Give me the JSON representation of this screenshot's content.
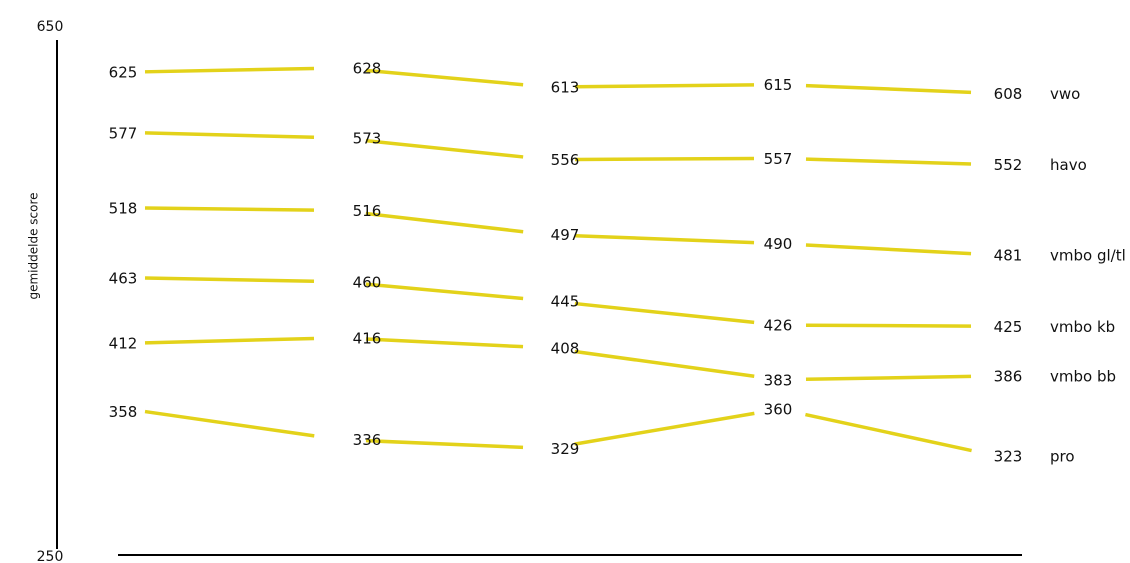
{
  "chart_data": {
    "type": "line",
    "ylabel": "gemiddelde score",
    "ylim": [
      250,
      650
    ],
    "yticks": [
      "650",
      "250"
    ],
    "x": [
      1,
      2,
      3,
      4,
      5
    ],
    "series": [
      {
        "name": "vwo",
        "values": [
          625,
          628,
          613,
          615,
          608
        ]
      },
      {
        "name": "havo",
        "values": [
          577,
          573,
          556,
          557,
          552
        ]
      },
      {
        "name": "vmbo gl/tl",
        "values": [
          518,
          516,
          497,
          490,
          481
        ]
      },
      {
        "name": "vmbo kb",
        "values": [
          463,
          460,
          445,
          426,
          425
        ]
      },
      {
        "name": "vmbo bb",
        "values": [
          412,
          416,
          408,
          383,
          386
        ]
      },
      {
        "name": "pro",
        "values": [
          358,
          336,
          329,
          360,
          323
        ]
      }
    ],
    "line_color": "#e3d21a",
    "grid": false,
    "legend": "inline-right"
  }
}
